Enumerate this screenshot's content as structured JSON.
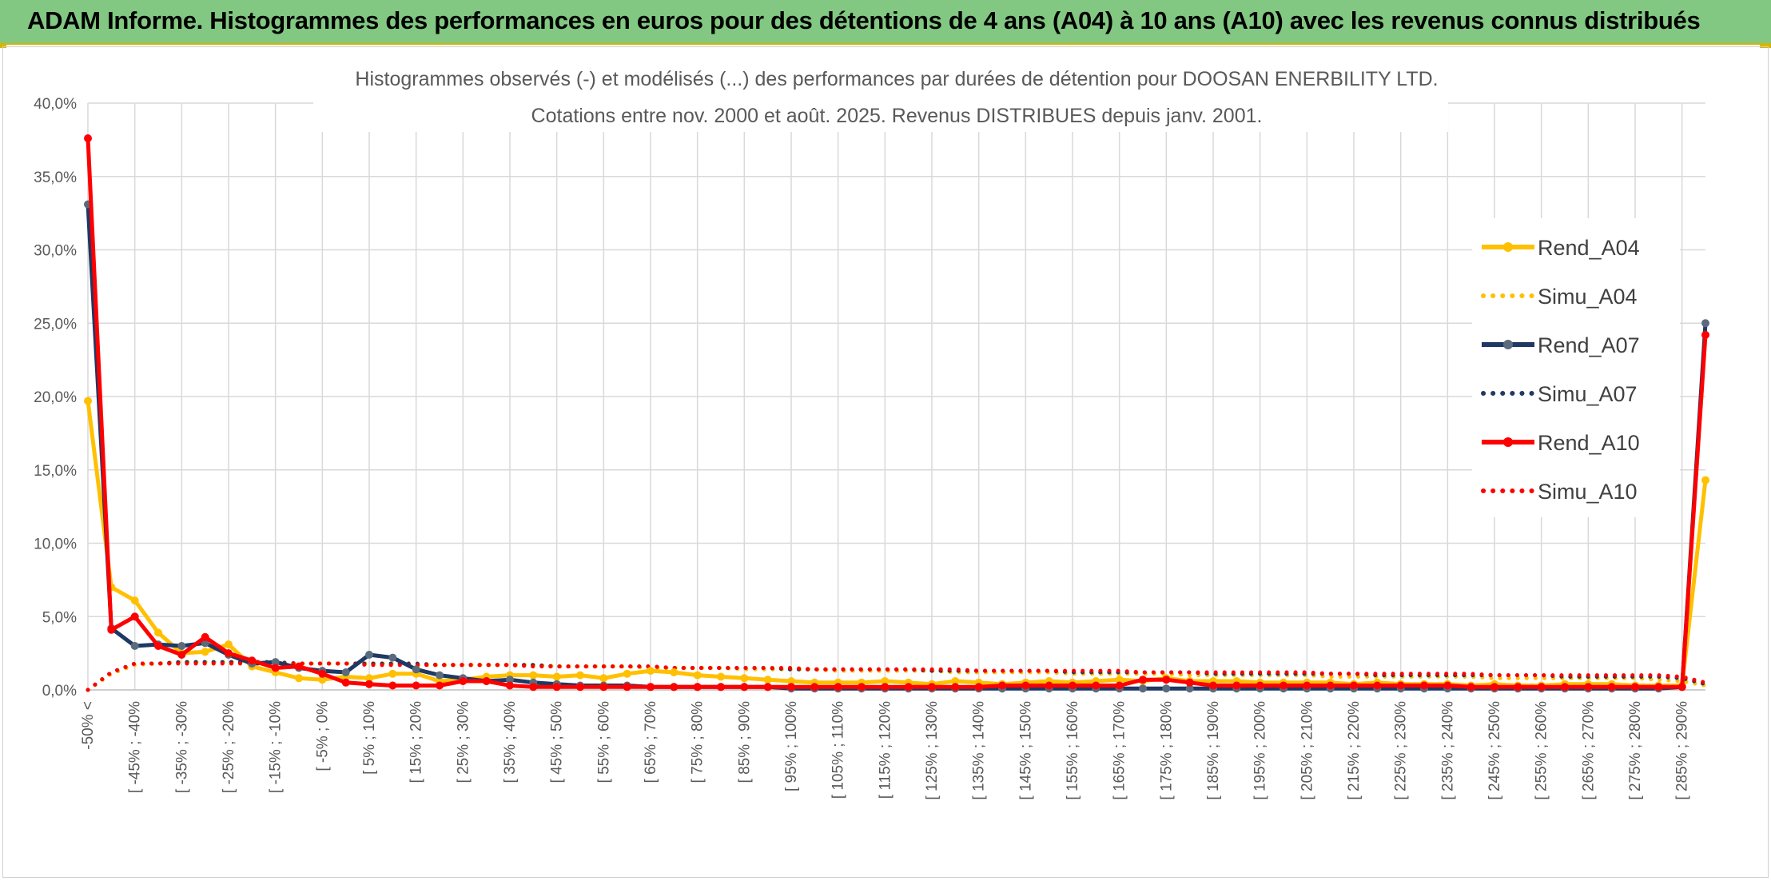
{
  "banner": {
    "title": "ADAM Informe. Histogrammes des performances en euros pour des détentions de 4 ans (A04) à 10 ans (A10) avec les revenus connus distribués"
  },
  "colors": {
    "banner_bg": "#82c882",
    "A04": "#ffc000",
    "A07": "#1f3864",
    "A07_marker": "#5a6b7e",
    "A10": "#ff0000",
    "grid": "#d9d9d9"
  },
  "chart_data": {
    "type": "line",
    "title": [
      "Histogrammes observés (-) et modélisés (...) des performances par durées de détention pour DOOSAN ENERBILITY LTD.",
      "Cotations entre nov. 2000 et août. 2025. Revenus DISTRIBUES depuis janv. 2001."
    ],
    "xlabel": "",
    "ylabel": "",
    "ylim": [
      0,
      40
    ],
    "y_ticks": [
      "0,0%",
      "5,0%",
      "10,0%",
      "15,0%",
      "20,0%",
      "25,0%",
      "30,0%",
      "35,0%",
      "40,0%"
    ],
    "grid": true,
    "legend_position": "right",
    "x_tick_labels": [
      "-50% <",
      "[ -45% ; -40%",
      "[ -35% ; -30%",
      "[ -25% ; -20%",
      "[ -15% ; -10%",
      "[ -5% ; 0%",
      "[ 5% ; 10%",
      "[ 15% ; 20%",
      "[ 25% ; 30%",
      "[ 35% ; 40%",
      "[ 45% ; 50%",
      "[ 55% ; 60%",
      "[ 65% ; 70%",
      "[ 75% ; 80%",
      "[ 85% ; 90%",
      "[ 95% ; 100%",
      "[ 105% ; 110%",
      "[ 115% ; 120%",
      "[ 125% ; 130%",
      "[ 135% ; 140%",
      "[ 145% ; 150%",
      "[ 155% ; 160%",
      "[ 165% ; 170%",
      "[ 175% ; 180%",
      "[ 185% ; 190%",
      "[ 195% ; 200%",
      "[ 205% ; 210%",
      "[ 215% ; 220%",
      "[ 225% ; 230%",
      "[ 235% ; 240%",
      "[ 245% ; 250%",
      "[ 255% ; 260%",
      "[ 265% ; 270%",
      "[ 275% ; 280%",
      "[ 285% ; 290%"
    ],
    "series": [
      {
        "name": "Rend_A04",
        "style": "solid",
        "color": "#ffc000",
        "values": [
          19.7,
          7.0,
          6.1,
          3.9,
          2.5,
          2.6,
          3.1,
          1.6,
          1.2,
          0.8,
          0.7,
          0.9,
          0.8,
          1.1,
          1.1,
          0.6,
          0.7,
          0.9,
          1.0,
          1.0,
          0.9,
          1.0,
          0.8,
          1.1,
          1.3,
          1.2,
          1.0,
          0.9,
          0.8,
          0.7,
          0.6,
          0.5,
          0.5,
          0.5,
          0.6,
          0.5,
          0.4,
          0.6,
          0.5,
          0.4,
          0.5,
          0.6,
          0.5,
          0.6,
          0.7,
          0.6,
          0.8,
          0.6,
          0.6,
          0.6,
          0.5,
          0.5,
          0.5,
          0.5,
          0.4,
          0.5,
          0.4,
          0.4,
          0.4,
          0.3,
          0.4,
          0.3,
          0.3,
          0.4,
          0.4,
          0.4,
          0.3,
          0.3,
          0.3,
          14.3
        ]
      },
      {
        "name": "Simu_A04",
        "style": "dotted",
        "color": "#ffc000",
        "values": [
          0.0,
          1.1,
          1.7,
          1.8,
          1.9,
          1.9,
          1.9,
          1.9,
          1.8,
          1.8,
          1.8,
          1.8,
          1.8,
          1.8,
          1.7,
          1.7,
          1.7,
          1.7,
          1.7,
          1.7,
          1.6,
          1.6,
          1.6,
          1.6,
          1.5,
          1.5,
          1.5,
          1.5,
          1.4,
          1.4,
          1.4,
          1.4,
          1.3,
          1.3,
          1.3,
          1.3,
          1.3,
          1.2,
          1.2,
          1.2,
          1.2,
          1.2,
          1.1,
          1.1,
          1.1,
          1.1,
          1.1,
          1.0,
          1.0,
          1.0,
          1.0,
          1.0,
          1.0,
          0.9,
          0.9,
          0.9,
          0.9,
          0.9,
          0.9,
          0.9,
          0.8,
          0.8,
          0.8,
          0.8,
          0.8,
          0.8,
          0.8,
          0.7,
          0.6,
          0.3
        ]
      },
      {
        "name": "Rend_A07",
        "style": "solid",
        "color": "#1f3864",
        "values": [
          33.1,
          4.2,
          3.0,
          3.1,
          3.0,
          3.2,
          2.4,
          1.8,
          1.9,
          1.5,
          1.3,
          1.2,
          2.4,
          2.2,
          1.4,
          1.0,
          0.8,
          0.6,
          0.7,
          0.5,
          0.4,
          0.3,
          0.3,
          0.3,
          0.2,
          0.2,
          0.2,
          0.2,
          0.2,
          0.2,
          0.1,
          0.1,
          0.1,
          0.1,
          0.1,
          0.1,
          0.1,
          0.1,
          0.1,
          0.1,
          0.1,
          0.1,
          0.1,
          0.1,
          0.1,
          0.1,
          0.1,
          0.1,
          0.1,
          0.1,
          0.1,
          0.1,
          0.1,
          0.1,
          0.1,
          0.1,
          0.1,
          0.1,
          0.1,
          0.1,
          0.1,
          0.1,
          0.1,
          0.1,
          0.1,
          0.1,
          0.1,
          0.1,
          0.2,
          25.0
        ]
      },
      {
        "name": "Simu_A07",
        "style": "dotted",
        "color": "#1f3864",
        "values": [
          0.0,
          1.2,
          1.8,
          1.8,
          1.9,
          1.9,
          1.9,
          1.9,
          1.9,
          1.8,
          1.8,
          1.8,
          1.8,
          1.8,
          1.8,
          1.7,
          1.7,
          1.7,
          1.7,
          1.7,
          1.6,
          1.6,
          1.6,
          1.6,
          1.6,
          1.5,
          1.5,
          1.5,
          1.5,
          1.5,
          1.4,
          1.4,
          1.4,
          1.4,
          1.4,
          1.4,
          1.3,
          1.3,
          1.3,
          1.3,
          1.3,
          1.3,
          1.2,
          1.2,
          1.2,
          1.2,
          1.2,
          1.2,
          1.1,
          1.1,
          1.1,
          1.1,
          1.1,
          1.1,
          1.1,
          1.0,
          1.0,
          1.0,
          1.0,
          1.0,
          1.0,
          1.0,
          1.0,
          0.9,
          0.9,
          0.9,
          0.9,
          0.9,
          0.8,
          0.4
        ]
      },
      {
        "name": "Rend_A10",
        "style": "solid",
        "color": "#ff0000",
        "values": [
          37.6,
          4.1,
          5.0,
          3.0,
          2.4,
          3.6,
          2.5,
          2.0,
          1.5,
          1.6,
          1.1,
          0.5,
          0.4,
          0.3,
          0.3,
          0.3,
          0.6,
          0.6,
          0.3,
          0.2,
          0.2,
          0.2,
          0.2,
          0.2,
          0.2,
          0.2,
          0.2,
          0.2,
          0.2,
          0.2,
          0.2,
          0.2,
          0.2,
          0.2,
          0.2,
          0.2,
          0.2,
          0.2,
          0.2,
          0.3,
          0.3,
          0.3,
          0.3,
          0.3,
          0.3,
          0.7,
          0.7,
          0.5,
          0.3,
          0.3,
          0.3,
          0.3,
          0.3,
          0.3,
          0.3,
          0.3,
          0.3,
          0.3,
          0.3,
          0.2,
          0.2,
          0.2,
          0.2,
          0.2,
          0.2,
          0.2,
          0.2,
          0.2,
          0.2,
          24.2
        ]
      },
      {
        "name": "Simu_A10",
        "style": "dotted",
        "color": "#ff0000",
        "values": [
          0.0,
          1.2,
          1.8,
          1.8,
          1.8,
          1.8,
          1.8,
          1.8,
          1.8,
          1.8,
          1.8,
          1.8,
          1.7,
          1.7,
          1.7,
          1.7,
          1.7,
          1.7,
          1.7,
          1.6,
          1.6,
          1.6,
          1.6,
          1.6,
          1.6,
          1.5,
          1.5,
          1.5,
          1.5,
          1.5,
          1.5,
          1.4,
          1.4,
          1.4,
          1.4,
          1.4,
          1.4,
          1.4,
          1.3,
          1.3,
          1.3,
          1.3,
          1.3,
          1.3,
          1.3,
          1.2,
          1.2,
          1.2,
          1.2,
          1.2,
          1.2,
          1.2,
          1.2,
          1.1,
          1.1,
          1.1,
          1.1,
          1.1,
          1.1,
          1.1,
          1.0,
          1.0,
          1.0,
          1.0,
          1.0,
          1.0,
          1.0,
          1.0,
          0.9,
          0.5
        ]
      }
    ]
  }
}
